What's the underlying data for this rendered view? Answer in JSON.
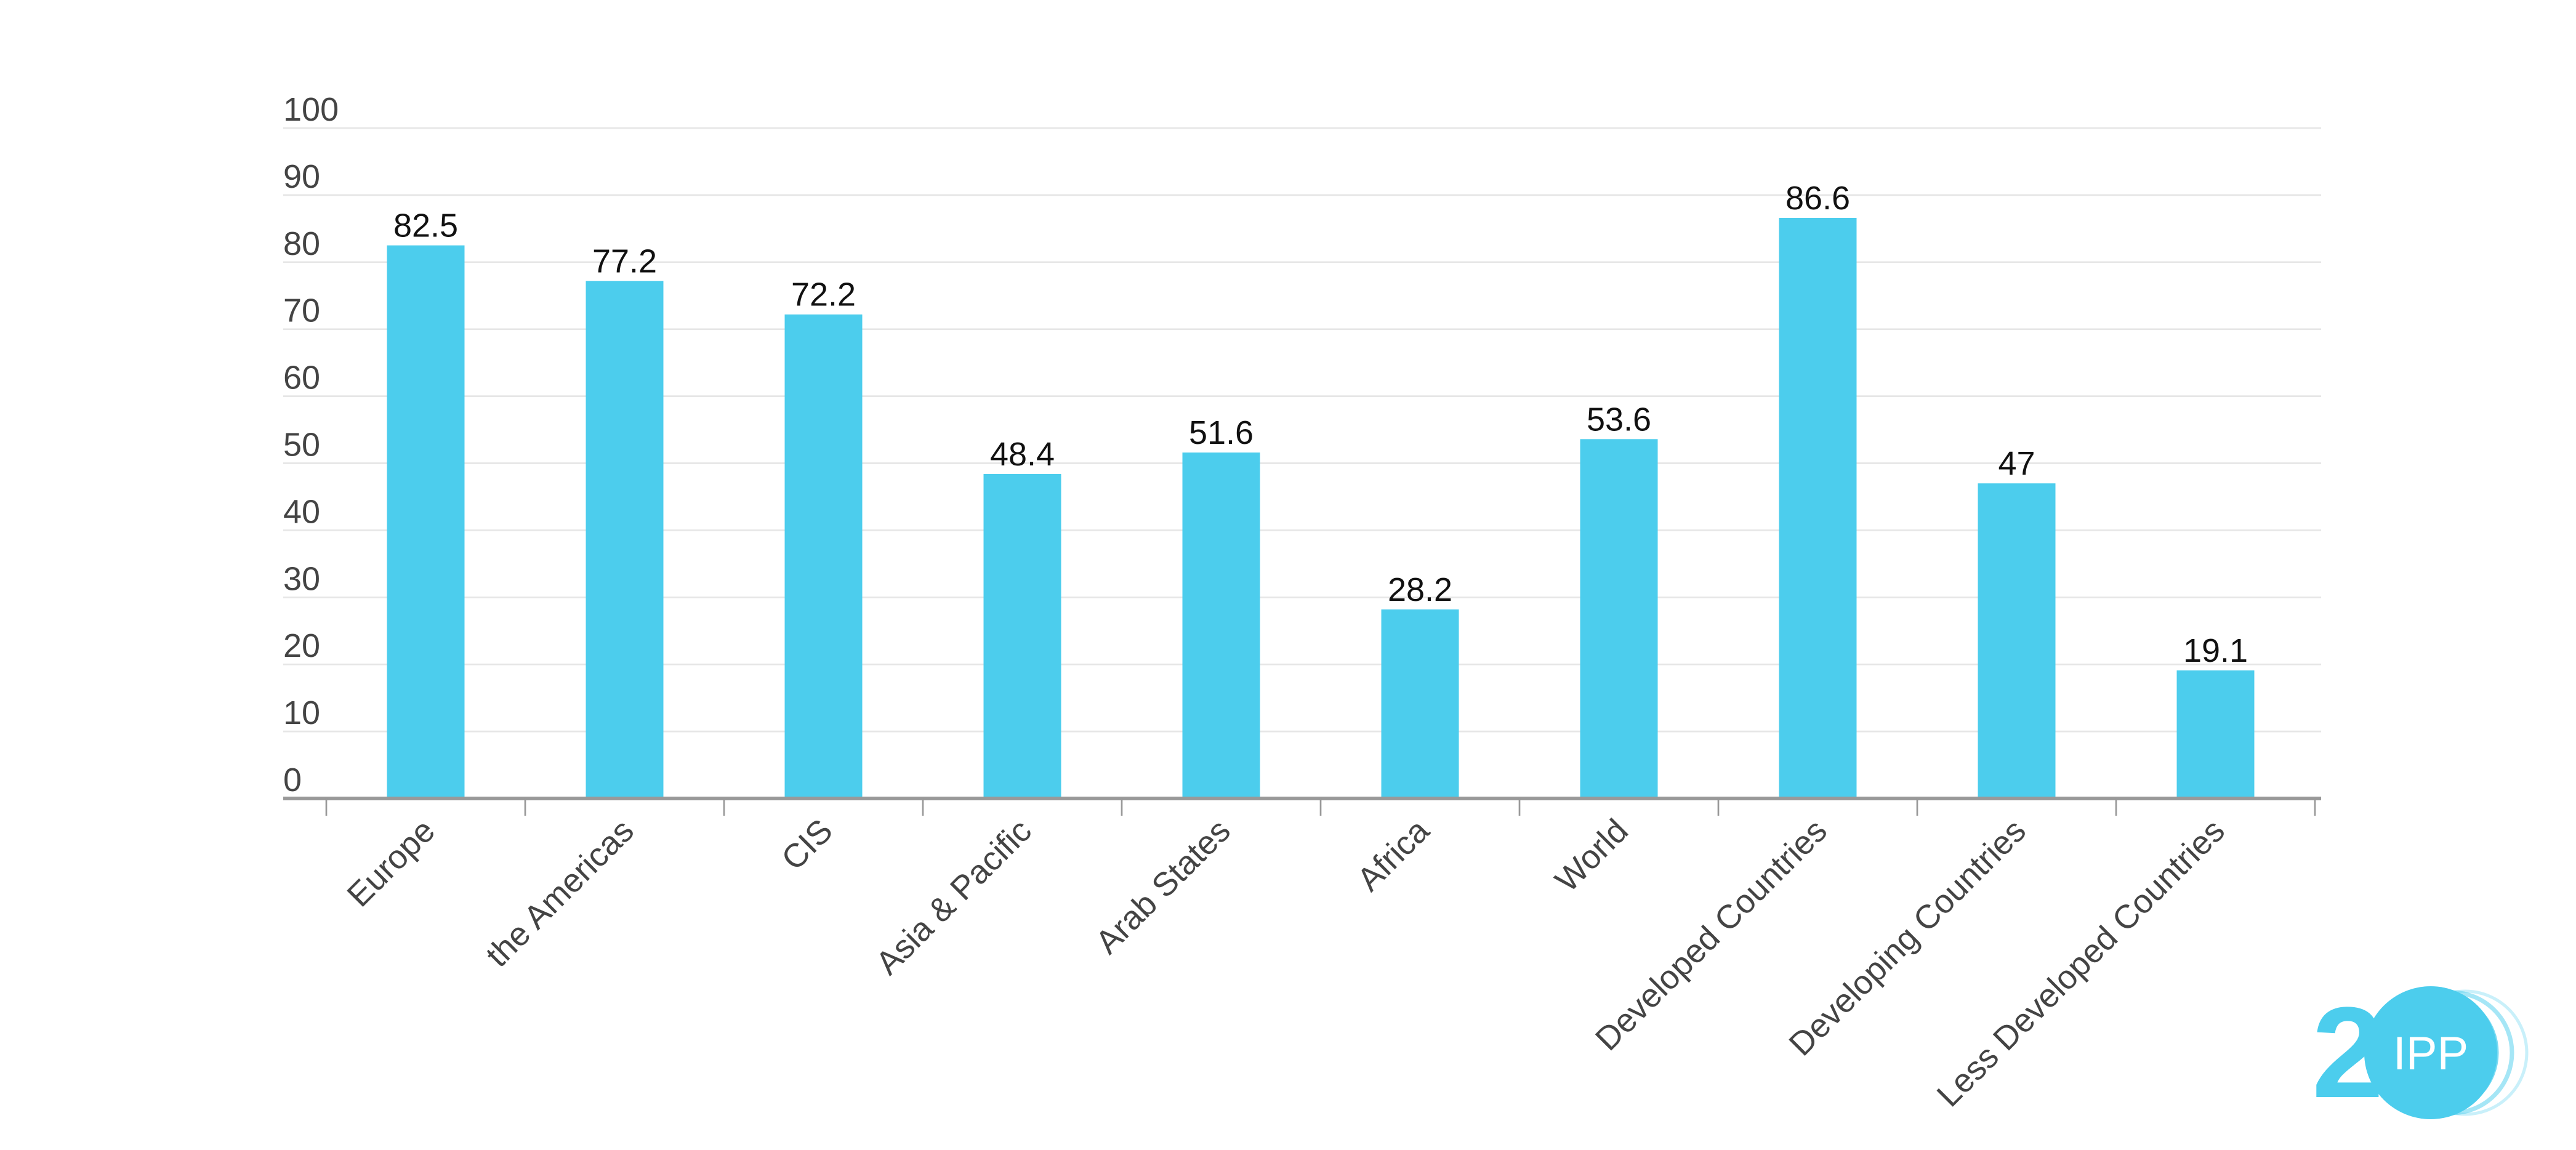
{
  "chart_data": {
    "type": "bar",
    "title": "",
    "xlabel": "",
    "ylabel": "",
    "categories": [
      "Europe",
      "the Americas",
      "CIS",
      "Asia & Pacific",
      "Arab States",
      "Africa",
      "World",
      "Developed Countries",
      "Developing Countries",
      "Less Developed Countries"
    ],
    "values": [
      82.5,
      77.2,
      72.2,
      48.4,
      51.6,
      28.2,
      53.6,
      86.6,
      47,
      19.1
    ],
    "data_labels": [
      "82.5",
      "77.2",
      "72.2",
      "48.4",
      "51.6",
      "28.2",
      "53.6",
      "86.6",
      "47",
      "19.1"
    ],
    "ylim": [
      0,
      100
    ],
    "yticks": [
      0,
      10,
      20,
      30,
      40,
      50,
      60,
      70,
      80,
      90,
      100
    ],
    "ytick_labels": [
      "0",
      "10",
      "20",
      "30",
      "40",
      "50",
      "60",
      "70",
      "80",
      "90",
      "100"
    ],
    "grid": true,
    "legend": "none",
    "bar_color": "#4ccded",
    "x_label_rotation": -45
  },
  "logo": {
    "number": "20",
    "inner": "IPP",
    "color": "#4ccded",
    "icon": "itu-20-logo-icon"
  }
}
